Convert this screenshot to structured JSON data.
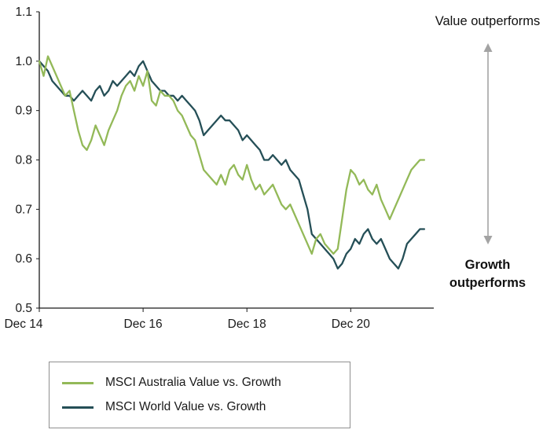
{
  "annotations": {
    "value_outperforms": "Value outperforms",
    "growth_outperforms": "Growth outperforms"
  },
  "chart_data": {
    "type": "line",
    "title": "",
    "xlabel": "",
    "ylabel": "",
    "x_axis": {
      "tick_labels": [
        "Dec 14",
        "Dec 16",
        "Dec 18",
        "Dec 20"
      ],
      "tick_positions_years": [
        0,
        2,
        4,
        6
      ],
      "range_years": [
        0,
        7.6
      ]
    },
    "y_axis": {
      "ticks": [
        0.5,
        0.6,
        0.7,
        0.8,
        0.9,
        1.0,
        1.1
      ],
      "range": [
        0.5,
        1.1
      ]
    },
    "grid": "off",
    "legend_position": "below",
    "x_start_year_offset": 0,
    "x_step_years": 0.0833333,
    "series": [
      {
        "name": "MSCI Australia Value vs. Growth",
        "color": "#93b958",
        "values": [
          1.0,
          0.97,
          1.01,
          0.99,
          0.97,
          0.95,
          0.93,
          0.94,
          0.9,
          0.86,
          0.83,
          0.82,
          0.84,
          0.87,
          0.85,
          0.83,
          0.86,
          0.88,
          0.9,
          0.93,
          0.95,
          0.96,
          0.94,
          0.97,
          0.95,
          0.98,
          0.92,
          0.91,
          0.94,
          0.93,
          0.93,
          0.92,
          0.9,
          0.89,
          0.87,
          0.85,
          0.84,
          0.81,
          0.78,
          0.77,
          0.76,
          0.75,
          0.77,
          0.75,
          0.78,
          0.79,
          0.77,
          0.76,
          0.79,
          0.76,
          0.74,
          0.75,
          0.73,
          0.74,
          0.75,
          0.73,
          0.71,
          0.7,
          0.71,
          0.69,
          0.67,
          0.65,
          0.63,
          0.61,
          0.64,
          0.65,
          0.63,
          0.62,
          0.61,
          0.62,
          0.68,
          0.74,
          0.78,
          0.77,
          0.75,
          0.76,
          0.74,
          0.73,
          0.75,
          0.72,
          0.7,
          0.68,
          0.7,
          0.72,
          0.74,
          0.76,
          0.78,
          0.79,
          0.8,
          0.8
        ]
      },
      {
        "name": "MSCI World Value vs. Growth",
        "color": "#254f57",
        "values": [
          1.0,
          0.99,
          0.98,
          0.96,
          0.95,
          0.94,
          0.93,
          0.93,
          0.92,
          0.93,
          0.94,
          0.93,
          0.92,
          0.94,
          0.95,
          0.93,
          0.94,
          0.96,
          0.95,
          0.96,
          0.97,
          0.98,
          0.97,
          0.99,
          1.0,
          0.98,
          0.96,
          0.95,
          0.94,
          0.94,
          0.93,
          0.93,
          0.92,
          0.93,
          0.92,
          0.91,
          0.9,
          0.88,
          0.85,
          0.86,
          0.87,
          0.88,
          0.89,
          0.88,
          0.88,
          0.87,
          0.86,
          0.84,
          0.85,
          0.84,
          0.83,
          0.82,
          0.8,
          0.8,
          0.81,
          0.8,
          0.79,
          0.8,
          0.78,
          0.77,
          0.76,
          0.73,
          0.7,
          0.65,
          0.64,
          0.63,
          0.62,
          0.61,
          0.6,
          0.58,
          0.59,
          0.61,
          0.62,
          0.64,
          0.63,
          0.65,
          0.66,
          0.64,
          0.63,
          0.64,
          0.62,
          0.6,
          0.59,
          0.58,
          0.6,
          0.63,
          0.64,
          0.65,
          0.66,
          0.66
        ]
      }
    ]
  },
  "colors": {
    "axis": "#1a1a1a",
    "arrow": "#a3a3a3",
    "legend_border": "#8f8f8f"
  }
}
